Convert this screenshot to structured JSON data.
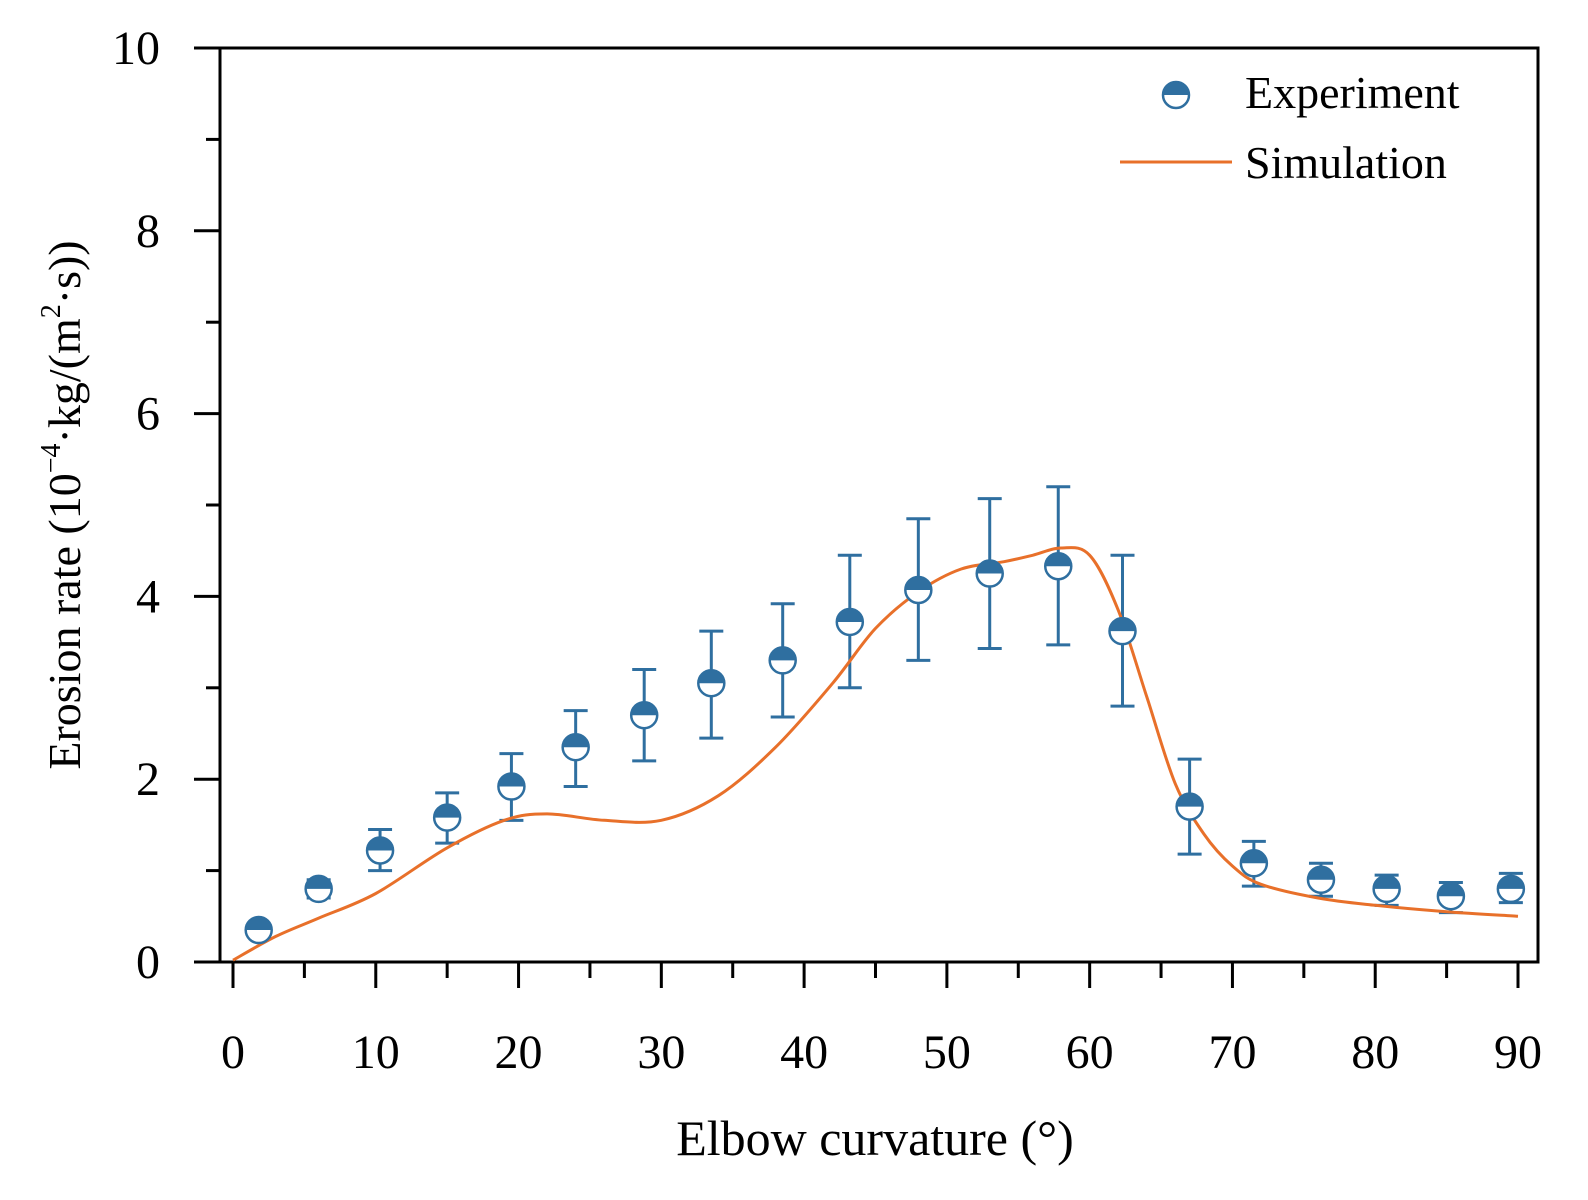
{
  "chart_data": {
    "type": "scatter",
    "xlabel": "Elbow curvature (°)",
    "ylabel_parts": {
      "prefix": "Erosion rate (10",
      "exp": "−4",
      "mid": "·kg/(m",
      "exp2": "2",
      "suffix": "·s))"
    },
    "xlim": [
      0,
      90
    ],
    "ylim": [
      0,
      10
    ],
    "xticks": [
      0,
      10,
      20,
      30,
      40,
      50,
      60,
      70,
      80,
      90
    ],
    "yticks": [
      0,
      2,
      4,
      6,
      8,
      10
    ],
    "legend": {
      "position": "top-right",
      "experiment_label": "Experiment",
      "simulation_label": "Simulation"
    },
    "colors": {
      "experiment": "#2f6fa0",
      "simulation": "#e8702a",
      "axis": "#000000"
    },
    "series": [
      {
        "name": "Experiment",
        "kind": "points_with_error_bars",
        "x": [
          1.8,
          6.0,
          10.3,
          15.0,
          19.5,
          24.0,
          28.8,
          33.5,
          38.5,
          43.2,
          48.0,
          53.0,
          57.8,
          62.3,
          67.0,
          71.5,
          76.2,
          80.8,
          85.3,
          89.5
        ],
        "y": [
          0.35,
          0.8,
          1.22,
          1.58,
          1.92,
          2.35,
          2.7,
          3.05,
          3.3,
          3.72,
          4.07,
          4.25,
          4.33,
          3.62,
          1.7,
          1.08,
          0.9,
          0.8,
          0.72,
          0.8
        ],
        "y_low": [
          0.35,
          0.7,
          1.0,
          1.3,
          1.55,
          1.92,
          2.2,
          2.45,
          2.68,
          3.0,
          3.3,
          3.43,
          3.47,
          2.8,
          1.18,
          0.83,
          0.72,
          0.62,
          0.54,
          0.65
        ],
        "y_high": [
          0.35,
          0.9,
          1.45,
          1.85,
          2.28,
          2.75,
          3.2,
          3.62,
          3.92,
          4.45,
          4.85,
          5.07,
          5.2,
          4.45,
          2.22,
          1.32,
          1.08,
          0.95,
          0.87,
          0.97
        ]
      },
      {
        "name": "Simulation",
        "kind": "line",
        "x": [
          0,
          3,
          6,
          10,
          15,
          19,
          22,
          26,
          30,
          34,
          38,
          42,
          45,
          48,
          51,
          54,
          56,
          58,
          60,
          62,
          64,
          66,
          68,
          70,
          72,
          76,
          80,
          85,
          90
        ],
        "y": [
          0.02,
          0.28,
          0.48,
          0.75,
          1.25,
          1.55,
          1.62,
          1.55,
          1.55,
          1.82,
          2.35,
          3.05,
          3.65,
          4.05,
          4.3,
          4.38,
          4.45,
          4.53,
          4.45,
          3.85,
          2.9,
          1.95,
          1.4,
          1.05,
          0.85,
          0.7,
          0.62,
          0.55,
          0.5
        ]
      }
    ]
  }
}
